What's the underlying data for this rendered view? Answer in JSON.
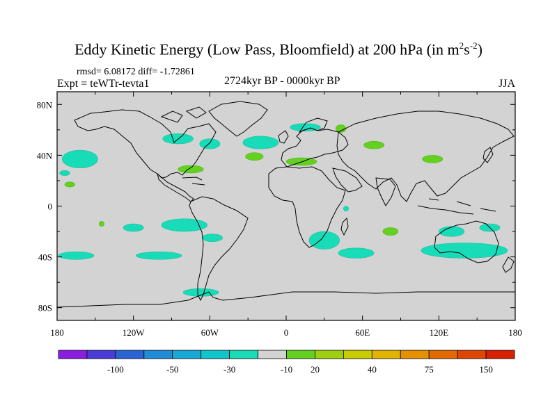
{
  "header": {
    "title": "Eddy Kinetic Energy (Low Pass, Bloomfield) at 200 hPa (in m",
    "unit_sup1": "2",
    "unit_mid": "s",
    "unit_sup2": "-2",
    "unit_close": ")",
    "rmsd_line": "rmsd= 6.08172 diff= -1.72861",
    "expt": "Expt = teWTr-tevta1",
    "period": "2724kyr BP - 0000kyr BP",
    "season": "JJA"
  },
  "chart_data": {
    "type": "heatmap",
    "title": "Eddy Kinetic Energy (Low Pass, Bloomfield) at 200 hPa",
    "units": "m2s-2",
    "x_axis": {
      "range": [
        -180,
        180
      ],
      "ticks": [
        {
          "value": -180,
          "label": "180"
        },
        {
          "value": -120,
          "label": "120W"
        },
        {
          "value": -60,
          "label": "60W"
        },
        {
          "value": 0,
          "label": "0"
        },
        {
          "value": 60,
          "label": "60E"
        },
        {
          "value": 120,
          "label": "120E"
        },
        {
          "value": 180,
          "label": "180"
        }
      ]
    },
    "y_axis": {
      "range": [
        -90,
        90
      ],
      "ticks": [
        {
          "value": 80,
          "label": "80N"
        },
        {
          "value": 40,
          "label": "40N"
        },
        {
          "value": 0,
          "label": "0"
        },
        {
          "value": -40,
          "label": "40S"
        },
        {
          "value": -80,
          "label": "80S"
        }
      ]
    },
    "colorbar": {
      "colors": [
        "#8a1ee0",
        "#4a3ad8",
        "#2a64d4",
        "#1e8cd6",
        "#18aad6",
        "#10c6cc",
        "#18dcb8",
        "#d3d3d3",
        "#64d020",
        "#9ed010",
        "#c8cc00",
        "#e2b400",
        "#e69000",
        "#e46a00",
        "#e04600",
        "#d82000"
      ],
      "labels": [
        {
          "after_index": 1,
          "text": "-100"
        },
        {
          "after_index": 3,
          "text": "-50"
        },
        {
          "after_index": 5,
          "text": "-30"
        },
        {
          "after_index": 7,
          "text": "-10"
        },
        {
          "after_index": 8,
          "text": "20"
        },
        {
          "after_index": 10,
          "text": "40"
        },
        {
          "after_index": 12,
          "text": "75"
        },
        {
          "after_index": 14,
          "text": "150"
        }
      ]
    },
    "negative_regions": [
      {
        "lon": -162,
        "lat": 37,
        "rlon": 14,
        "rlat": 7
      },
      {
        "lon": -174,
        "lat": 26,
        "rlon": 4,
        "rlat": 2
      },
      {
        "lon": -85,
        "lat": 53,
        "rlon": 12,
        "rlat": 4
      },
      {
        "lon": -60,
        "lat": 49,
        "rlon": 8,
        "rlat": 4
      },
      {
        "lon": -20,
        "lat": 50,
        "rlon": 14,
        "rlat": 5
      },
      {
        "lon": 15,
        "lat": 62,
        "rlon": 12,
        "rlat": 3
      },
      {
        "lon": -120,
        "lat": -17,
        "rlon": 8,
        "rlat": 3
      },
      {
        "lon": -80,
        "lat": -15,
        "rlon": 18,
        "rlat": 5
      },
      {
        "lon": -58,
        "lat": -25,
        "rlon": 8,
        "rlat": 3
      },
      {
        "lon": -165,
        "lat": -39,
        "rlon": 14,
        "rlat": 3
      },
      {
        "lon": -100,
        "lat": -39,
        "rlon": 18,
        "rlat": 3
      },
      {
        "lon": -67,
        "lat": -68,
        "rlon": 14,
        "rlat": 3
      },
      {
        "lon": 30,
        "lat": -27,
        "rlon": 12,
        "rlat": 7
      },
      {
        "lon": 55,
        "lat": -37,
        "rlon": 14,
        "rlat": 4
      },
      {
        "lon": 140,
        "lat": -35,
        "rlon": 34,
        "rlat": 6
      },
      {
        "lon": 130,
        "lat": -20,
        "rlon": 10,
        "rlat": 4
      },
      {
        "lon": 160,
        "lat": -17,
        "rlon": 8,
        "rlat": 3
      },
      {
        "lon": 47,
        "lat": -2,
        "rlon": 2,
        "rlat": 2
      }
    ],
    "positive_regions": [
      {
        "lon": -75,
        "lat": 29,
        "rlon": 10,
        "rlat": 3
      },
      {
        "lon": -25,
        "lat": 39,
        "rlon": 7,
        "rlat": 3
      },
      {
        "lon": 12,
        "lat": 35,
        "rlon": 12,
        "rlat": 3
      },
      {
        "lon": 43,
        "lat": 61,
        "rlon": 4,
        "rlat": 3
      },
      {
        "lon": 69,
        "lat": 48,
        "rlon": 8,
        "rlat": 3
      },
      {
        "lon": 115,
        "lat": 37,
        "rlon": 8,
        "rlat": 3
      },
      {
        "lon": -170,
        "lat": 17,
        "rlon": 4,
        "rlat": 2
      },
      {
        "lon": 82,
        "lat": -20,
        "rlon": 6,
        "rlat": 3
      },
      {
        "lon": -145,
        "lat": -14,
        "rlon": 2,
        "rlat": 2
      }
    ]
  }
}
